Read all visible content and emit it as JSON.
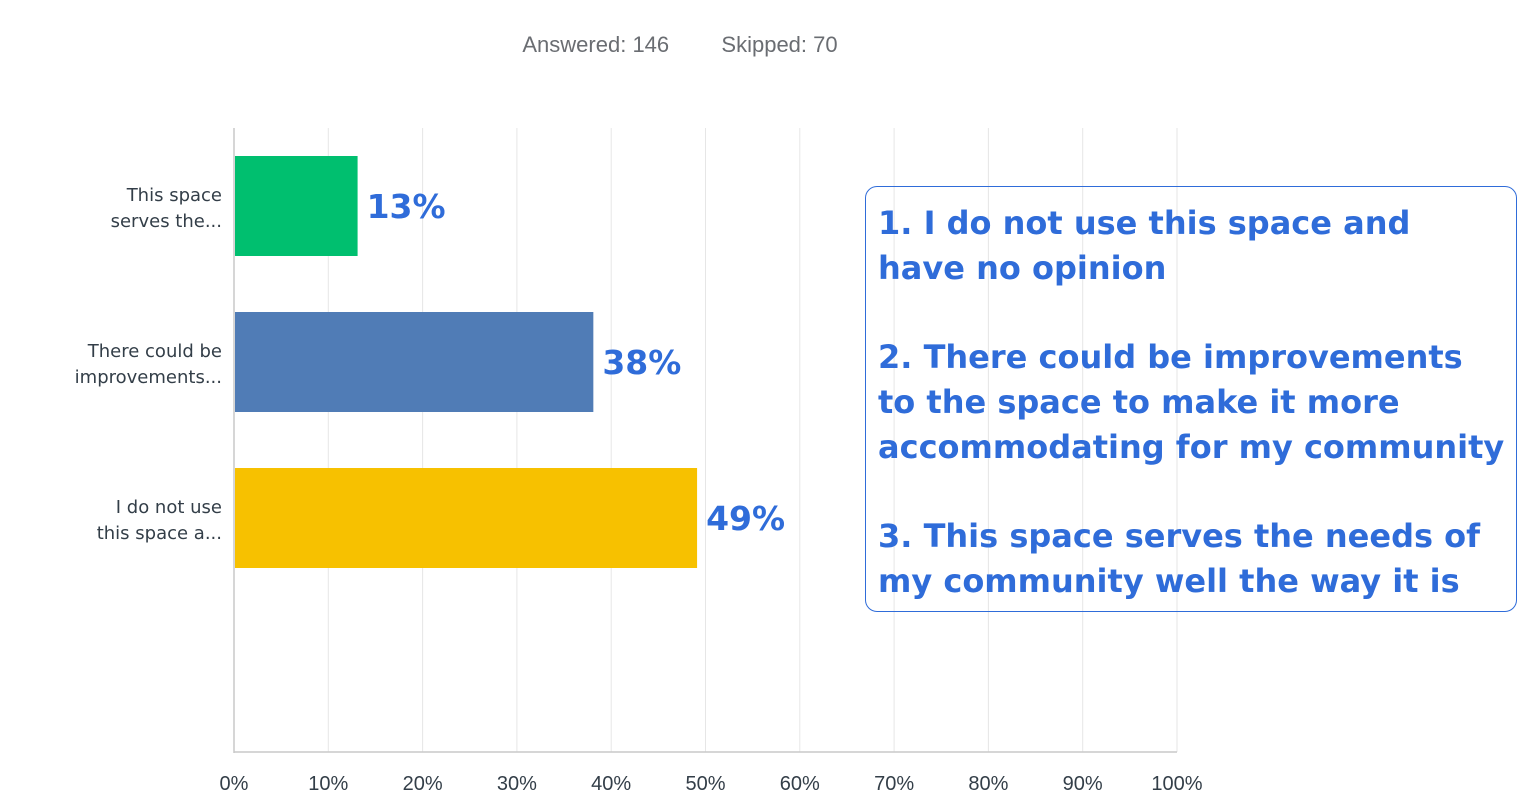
{
  "summary": {
    "answered_label": "Answered:",
    "answered_value": "146",
    "skipped_label": "Skipped:",
    "skipped_value": "70"
  },
  "chart_data": {
    "type": "bar",
    "orientation": "horizontal",
    "categories": [
      [
        "This space",
        "serves the..."
      ],
      [
        "There could be",
        "improvements..."
      ],
      [
        "I do not use",
        "this space a..."
      ]
    ],
    "values": [
      13,
      38,
      49
    ],
    "value_labels": [
      "13%",
      "38%",
      "49%"
    ],
    "colors": [
      "#00bf6f",
      "#507cb6",
      "#f7c100"
    ],
    "xlim": [
      0,
      100
    ],
    "xticks": [
      "0%",
      "10%",
      "20%",
      "30%",
      "40%",
      "50%",
      "60%",
      "70%",
      "80%",
      "90%",
      "100%"
    ],
    "grid": true,
    "title": "",
    "xlabel": "",
    "ylabel": ""
  },
  "annotation": {
    "color": "#2f6cd9",
    "lines": [
      "1. I do not use this space and have no opinion",
      "2. There could be improvements to the space to make it more accommodating for my community",
      "3. This space serves the needs of my community well the way it is"
    ]
  }
}
